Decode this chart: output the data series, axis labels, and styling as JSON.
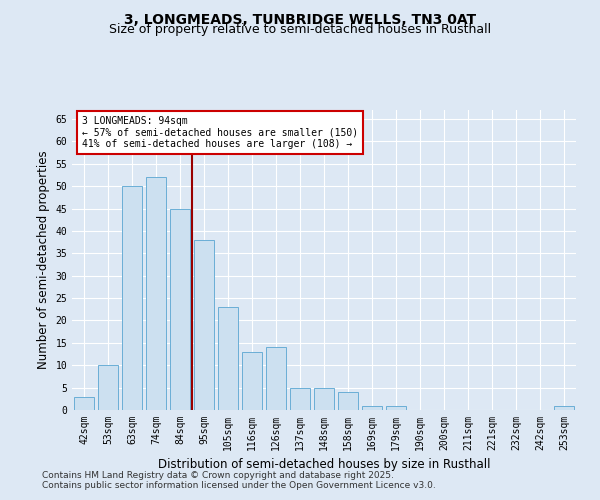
{
  "title1": "3, LONGMEADS, TUNBRIDGE WELLS, TN3 0AT",
  "title2": "Size of property relative to semi-detached houses in Rusthall",
  "xlabel": "Distribution of semi-detached houses by size in Rusthall",
  "ylabel": "Number of semi-detached properties",
  "categories": [
    "42sqm",
    "53sqm",
    "63sqm",
    "74sqm",
    "84sqm",
    "95sqm",
    "105sqm",
    "116sqm",
    "126sqm",
    "137sqm",
    "148sqm",
    "158sqm",
    "169sqm",
    "179sqm",
    "190sqm",
    "200sqm",
    "211sqm",
    "221sqm",
    "232sqm",
    "242sqm",
    "253sqm"
  ],
  "values": [
    3,
    10,
    50,
    52,
    45,
    38,
    23,
    13,
    14,
    5,
    5,
    4,
    1,
    1,
    0,
    0,
    0,
    0,
    0,
    0,
    1
  ],
  "bar_color": "#cce0f0",
  "bar_edge_color": "#6aaed6",
  "ref_line_x": 4.5,
  "ref_line_label": "3 LONGMEADS: 94sqm",
  "annotation_smaller": "← 57% of semi-detached houses are smaller (150)",
  "annotation_larger": "41% of semi-detached houses are larger (108) →",
  "ylim": [
    0,
    67
  ],
  "yticks": [
    0,
    5,
    10,
    15,
    20,
    25,
    30,
    35,
    40,
    45,
    50,
    55,
    60,
    65
  ],
  "footer1": "Contains HM Land Registry data © Crown copyright and database right 2025.",
  "footer2": "Contains public sector information licensed under the Open Government Licence v3.0.",
  "bg_color": "#dde8f4",
  "plot_bg_color": "#dde8f4",
  "grid_color": "#ffffff",
  "title_fontsize": 10,
  "subtitle_fontsize": 9,
  "tick_fontsize": 7,
  "label_fontsize": 8.5,
  "footer_fontsize": 6.5
}
